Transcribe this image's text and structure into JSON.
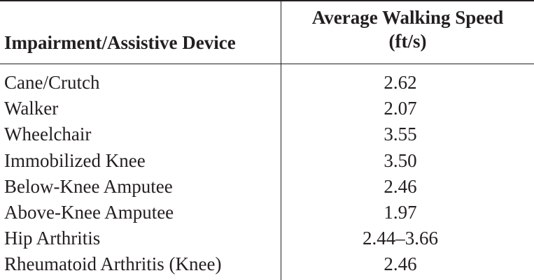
{
  "table": {
    "header": {
      "device": "Impairment/Assistive Device",
      "speed_line1": "Average Walking Speed",
      "speed_line2": "(ft/s)"
    },
    "rows": [
      {
        "device": "Cane/Crutch",
        "speed": "2.62"
      },
      {
        "device": "Walker",
        "speed": "2.07"
      },
      {
        "device": "Wheelchair",
        "speed": "3.55"
      },
      {
        "device": "Immobilized Knee",
        "speed": "3.50"
      },
      {
        "device": "Below-Knee Amputee",
        "speed": "2.46"
      },
      {
        "device": "Above-Knee Amputee",
        "speed": "1.97"
      },
      {
        "device": "Hip Arthritis",
        "speed": "2.44–3.66"
      },
      {
        "device": "Rheumatoid Arthritis (Knee)",
        "speed": "2.46"
      }
    ]
  }
}
